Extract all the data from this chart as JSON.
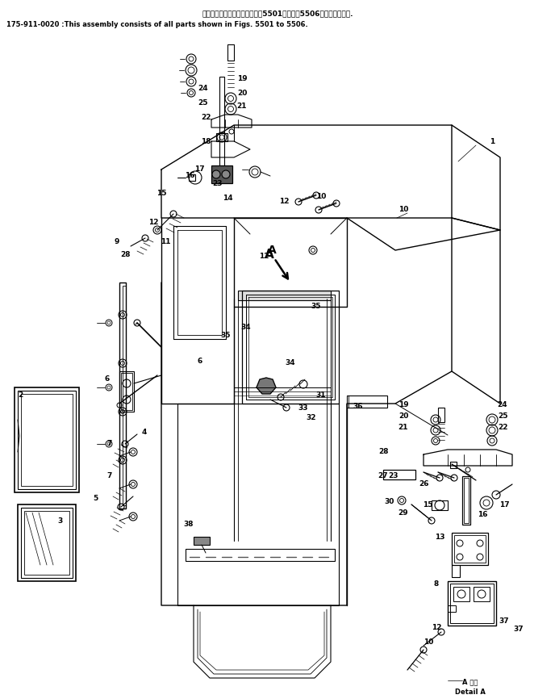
{
  "title_line1": "このアセンブリの構成部品は第5501図から第5506図まで含みます.",
  "title_line2": "175-911-0020 :This assembly consists of all parts shown in Figs. 5501 to 5506.",
  "detail_label_jp": "A 詳細",
  "detail_label_en": "Detail A",
  "bg_color": "#ffffff",
  "lc": "#1a1a1a",
  "tc": "#1a1a1a",
  "fig_width": 6.88,
  "fig_height": 8.66,
  "dpi": 100
}
